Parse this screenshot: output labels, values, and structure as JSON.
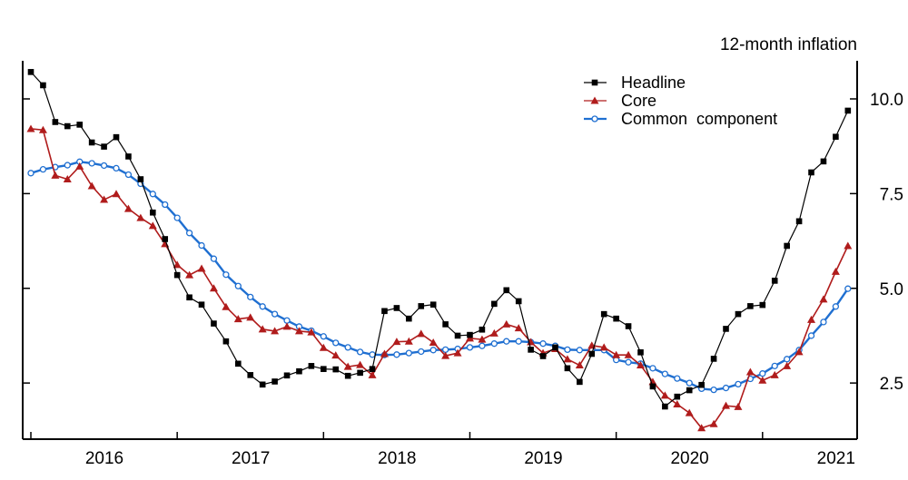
{
  "chart_data": {
    "type": "line",
    "title": "12-month inflation",
    "xlabel": "",
    "ylabel": "",
    "x_tick_labels": [
      "2016",
      "2017",
      "2018",
      "2019",
      "2020",
      "2021"
    ],
    "y_tick_labels": [
      "2.5",
      "5.0",
      "7.5",
      "10.0"
    ],
    "y_ticks": [
      2.5,
      5.0,
      7.5,
      10.0
    ],
    "ylim": [
      0.97,
      11.0
    ],
    "xlim": [
      "2016-01",
      "2021-10"
    ],
    "y_axis_side": "right",
    "grid": false,
    "legend_position": "top-right",
    "x": [
      "2016-01",
      "2016-02",
      "2016-03",
      "2016-04",
      "2016-05",
      "2016-06",
      "2016-07",
      "2016-08",
      "2016-09",
      "2016-10",
      "2016-11",
      "2016-12",
      "2017-01",
      "2017-02",
      "2017-03",
      "2017-04",
      "2017-05",
      "2017-06",
      "2017-07",
      "2017-08",
      "2017-09",
      "2017-10",
      "2017-11",
      "2017-12",
      "2018-01",
      "2018-02",
      "2018-03",
      "2018-04",
      "2018-05",
      "2018-06",
      "2018-07",
      "2018-08",
      "2018-09",
      "2018-10",
      "2018-11",
      "2018-12",
      "2019-01",
      "2019-02",
      "2019-03",
      "2019-04",
      "2019-05",
      "2019-06",
      "2019-07",
      "2019-08",
      "2019-09",
      "2019-10",
      "2019-11",
      "2019-12",
      "2020-01",
      "2020-02",
      "2020-03",
      "2020-04",
      "2020-05",
      "2020-06",
      "2020-07",
      "2020-08",
      "2020-09",
      "2020-10",
      "2020-11",
      "2020-12",
      "2021-01",
      "2021-02",
      "2021-03",
      "2021-04",
      "2021-05",
      "2021-06",
      "2021-07",
      "2021-08"
    ],
    "series": [
      {
        "name": "Headline",
        "color": "#000000",
        "marker": "square",
        "values": [
          10.71,
          10.36,
          9.39,
          9.28,
          9.32,
          8.85,
          8.74,
          8.99,
          8.48,
          7.88,
          7.0,
          6.3,
          5.35,
          4.76,
          4.57,
          4.07,
          3.6,
          3.01,
          2.71,
          2.46,
          2.54,
          2.7,
          2.81,
          2.95,
          2.87,
          2.86,
          2.69,
          2.77,
          2.87,
          4.4,
          4.48,
          4.2,
          4.53,
          4.57,
          4.05,
          3.75,
          3.77,
          3.91,
          4.59,
          4.95,
          4.66,
          3.38,
          3.21,
          3.44,
          2.89,
          2.53,
          3.27,
          4.32,
          4.2,
          4.0,
          3.31,
          2.41,
          1.88,
          2.14,
          2.31,
          2.45,
          3.14,
          3.93,
          4.32,
          4.53,
          4.56,
          5.2,
          6.12,
          6.77,
          8.06,
          8.35,
          9.0,
          9.69
        ]
      },
      {
        "name": "Core",
        "color": "#b01c1c",
        "marker": "triangle",
        "values": [
          9.21,
          9.18,
          7.98,
          7.88,
          8.22,
          7.7,
          7.34,
          7.49,
          7.1,
          6.86,
          6.65,
          6.17,
          5.62,
          5.35,
          5.52,
          5.0,
          4.51,
          4.19,
          4.23,
          3.92,
          3.87,
          3.99,
          3.87,
          3.84,
          3.43,
          3.23,
          2.93,
          2.98,
          2.71,
          3.27,
          3.59,
          3.6,
          3.8,
          3.57,
          3.22,
          3.29,
          3.68,
          3.65,
          3.81,
          4.05,
          3.95,
          3.58,
          3.29,
          3.4,
          3.13,
          2.97,
          3.49,
          3.44,
          3.24,
          3.24,
          2.97,
          2.53,
          2.17,
          1.94,
          1.71,
          1.31,
          1.42,
          1.9,
          1.87,
          2.79,
          2.57,
          2.71,
          2.95,
          3.32,
          4.17,
          4.71,
          5.44,
          6.12
        ]
      },
      {
        "name": "Common  component",
        "color": "#1f6fd1",
        "marker": "circle",
        "values": [
          8.04,
          8.14,
          8.2,
          8.25,
          8.34,
          8.3,
          8.24,
          8.17,
          8.0,
          7.76,
          7.49,
          7.21,
          6.86,
          6.46,
          6.13,
          5.78,
          5.36,
          5.06,
          4.77,
          4.52,
          4.32,
          4.15,
          3.99,
          3.88,
          3.73,
          3.56,
          3.44,
          3.32,
          3.25,
          3.24,
          3.25,
          3.29,
          3.33,
          3.37,
          3.38,
          3.4,
          3.44,
          3.48,
          3.54,
          3.6,
          3.6,
          3.58,
          3.54,
          3.48,
          3.38,
          3.37,
          3.37,
          3.37,
          3.11,
          3.05,
          3.01,
          2.89,
          2.74,
          2.62,
          2.5,
          2.35,
          2.32,
          2.37,
          2.47,
          2.61,
          2.75,
          2.95,
          3.13,
          3.37,
          3.75,
          4.11,
          4.52,
          4.99
        ]
      }
    ]
  }
}
